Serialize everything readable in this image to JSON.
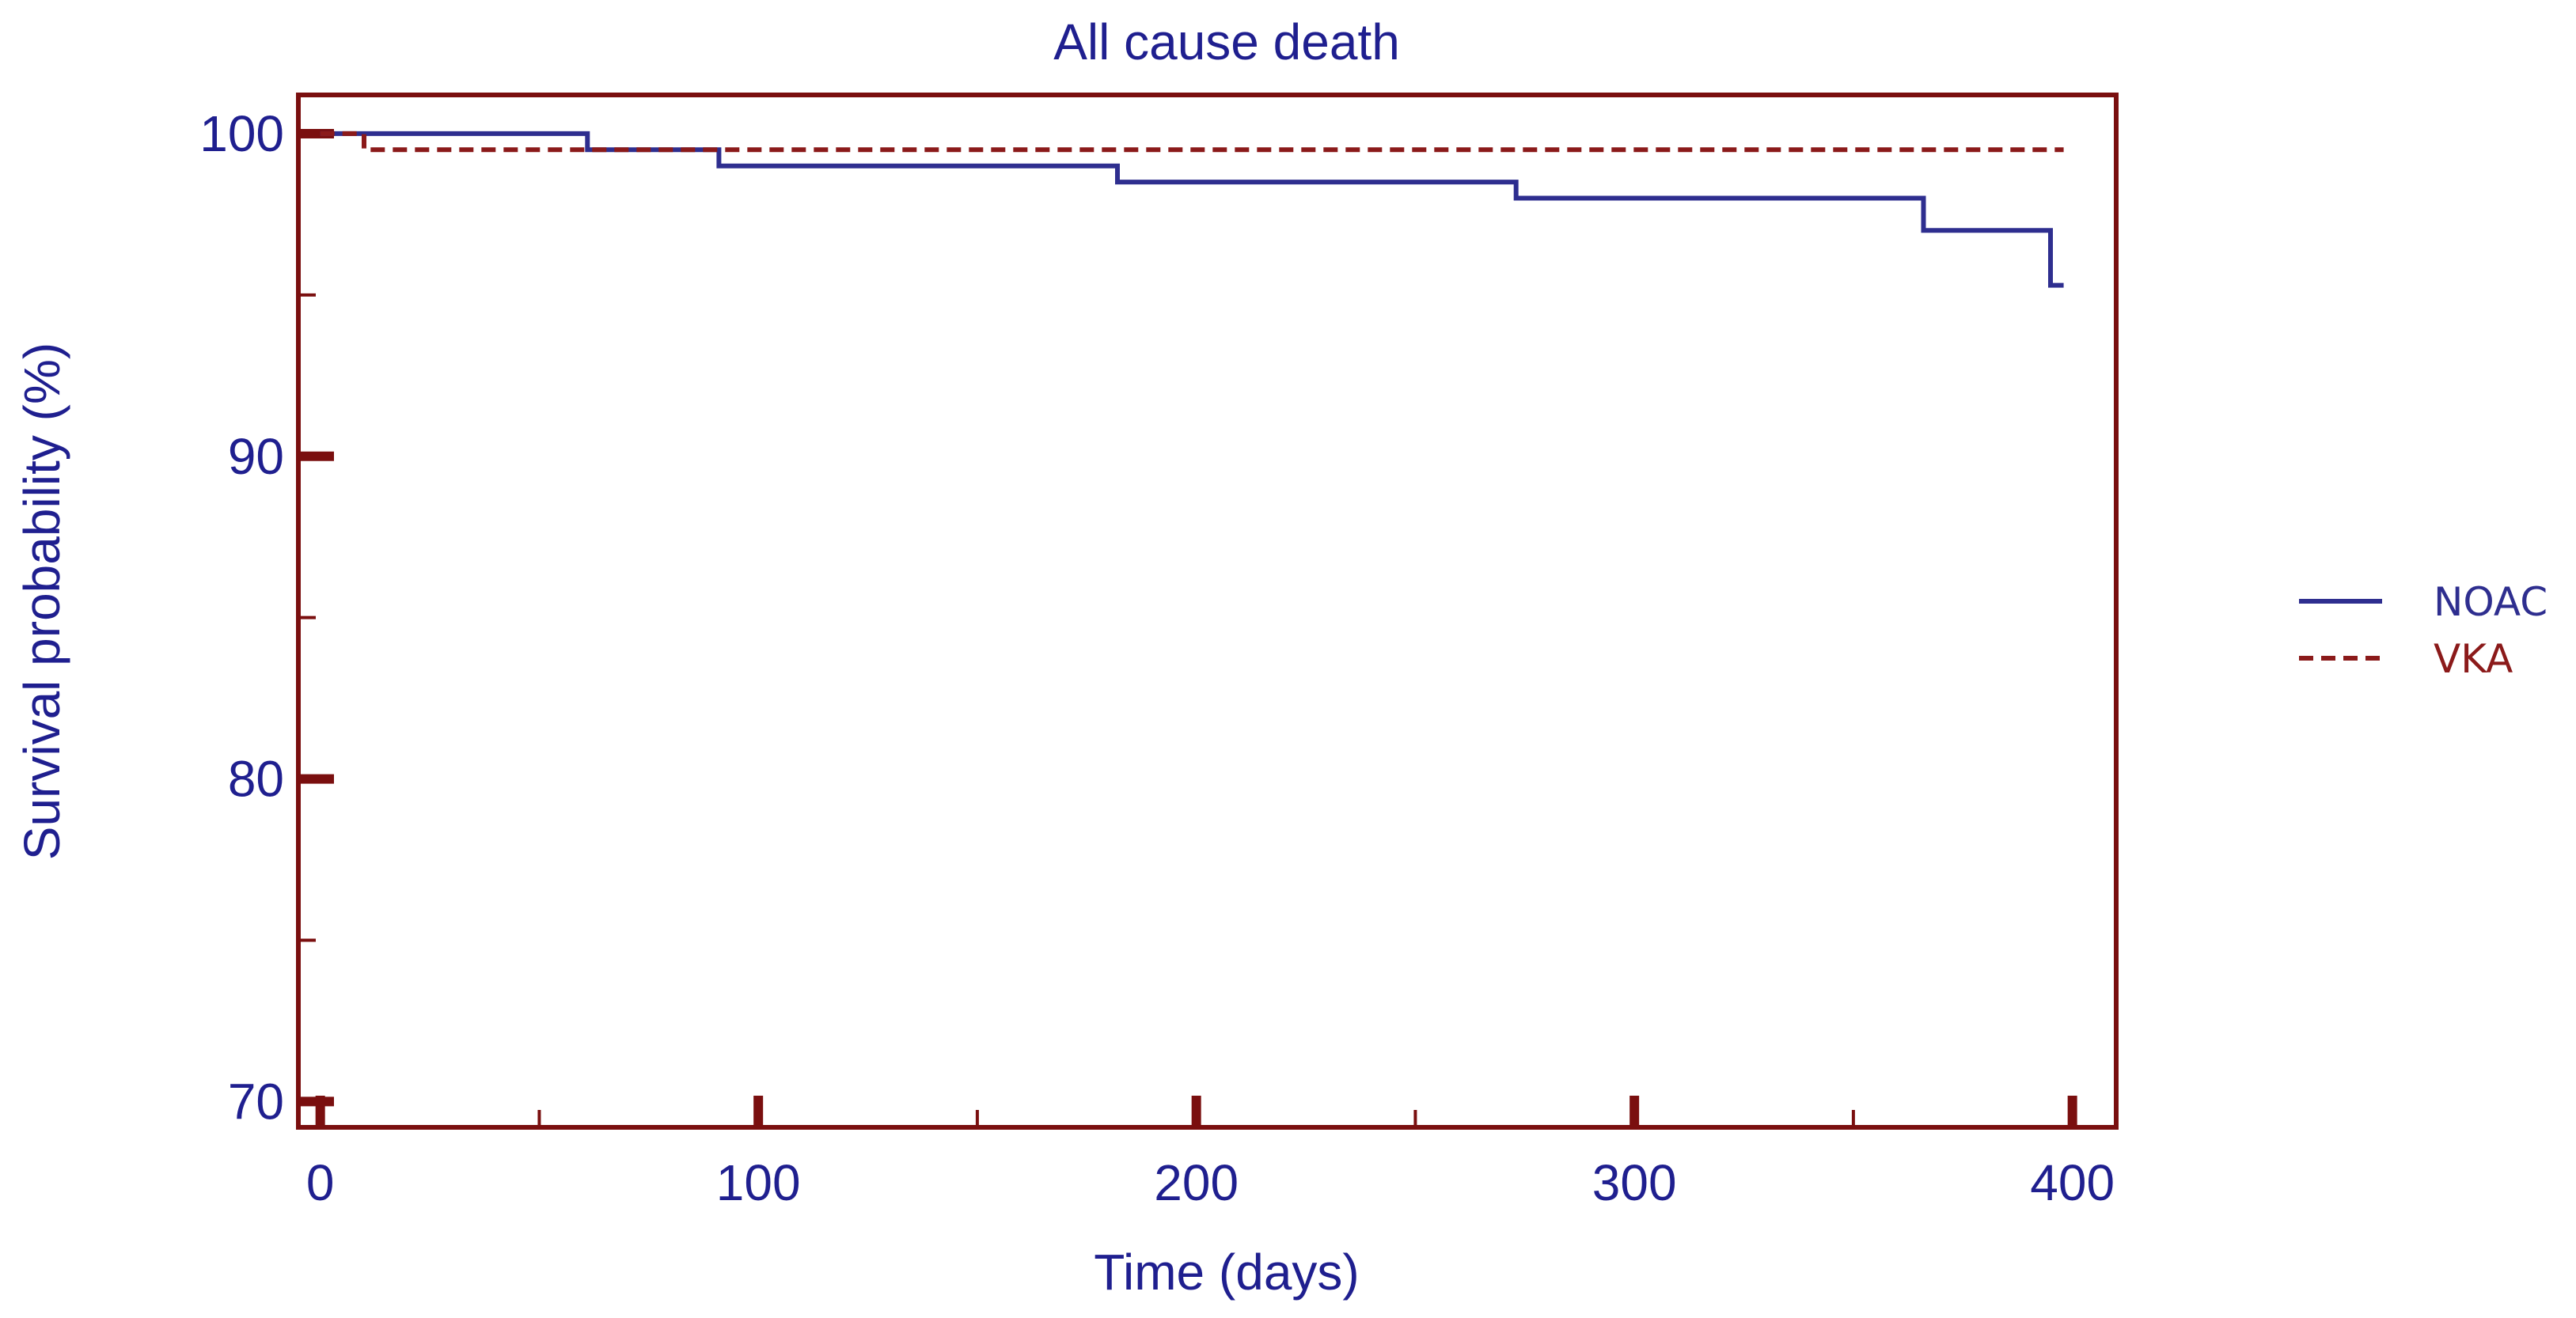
{
  "chart_data": {
    "type": "line",
    "title": "All cause death",
    "xlabel": "Time (days)",
    "ylabel": "Survival probability (%)",
    "xlim": [
      -5,
      410
    ],
    "ylim": [
      69.2,
      101.2
    ],
    "xticks": [
      0,
      100,
      200,
      300,
      400
    ],
    "yticks": [
      70,
      80,
      90,
      100
    ],
    "xminor": [
      50,
      150,
      250,
      350
    ],
    "yminor": [
      75,
      85,
      95
    ],
    "grid": false,
    "legend_position": "right",
    "series": [
      {
        "name": "NOAC",
        "color": "#2e2e8f",
        "dash": "solid",
        "step_x": [
          0,
          61,
          61,
          91,
          91,
          182,
          182,
          273,
          273,
          366,
          366,
          395,
          395,
          398
        ],
        "step_y": [
          100,
          100,
          99.5,
          99.5,
          99.0,
          99.0,
          98.5,
          98.5,
          98.0,
          98.0,
          97.0,
          97.0,
          95.3,
          95.3
        ]
      },
      {
        "name": "VKA",
        "color": "#8b1a1a",
        "dash": "dashed",
        "step_x": [
          0,
          10,
          10,
          398
        ],
        "step_y": [
          100,
          100,
          99.5,
          99.5
        ]
      }
    ]
  }
}
